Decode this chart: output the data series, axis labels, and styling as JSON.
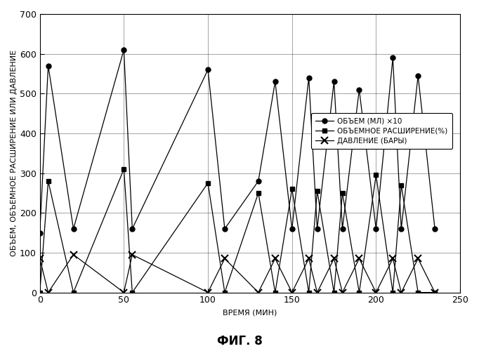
{
  "title": "ФИГ. 8",
  "ylabel": "ОБЪЕМ, ОБЪЕМНОЕ РАСШИРЕНИЕ ИЛИ ДАВЛЕНИЕ",
  "xlabel": "ВРЕМЯ (МИН)",
  "xlim": [
    0,
    250
  ],
  "ylim": [
    0,
    700
  ],
  "yticks": [
    0,
    100,
    200,
    300,
    400,
    500,
    600,
    700
  ],
  "xticks": [
    0,
    50,
    100,
    150,
    200,
    250
  ],
  "bg_color": "#ffffff",
  "volume_x": [
    0,
    5,
    20,
    50,
    55,
    100,
    110,
    130,
    140,
    150,
    160,
    165,
    175,
    180,
    190,
    200,
    210,
    215,
    225,
    235
  ],
  "volume_y": [
    150,
    570,
    160,
    610,
    160,
    560,
    160,
    280,
    530,
    160,
    540,
    160,
    530,
    160,
    510,
    160,
    590,
    160,
    545,
    160
  ],
  "expansion_x": [
    0,
    5,
    20,
    50,
    55,
    100,
    110,
    130,
    140,
    150,
    160,
    165,
    175,
    180,
    190,
    200,
    210,
    215,
    225,
    235
  ],
  "expansion_y": [
    0,
    280,
    0,
    310,
    0,
    275,
    0,
    250,
    0,
    260,
    0,
    255,
    0,
    250,
    0,
    295,
    0,
    270,
    0,
    0
  ],
  "pressure_x": [
    0,
    5,
    20,
    50,
    55,
    100,
    110,
    130,
    140,
    150,
    160,
    165,
    175,
    180,
    190,
    200,
    210,
    215,
    225,
    235
  ],
  "pressure_y": [
    85,
    0,
    95,
    0,
    95,
    0,
    85,
    0,
    85,
    0,
    85,
    0,
    85,
    0,
    85,
    0,
    85,
    0,
    85,
    0
  ],
  "legend_labels": [
    "ОБЪЕМ (МЛ) ×10",
    "ОБЪЕМНОЕ РАСШИРЕНИЕ(%)",
    "ДАВЛЕНИЕ (БАРЫ)"
  ],
  "line_color": "#000000",
  "fontsize_title": 12,
  "fontsize_labels": 8,
  "fontsize_legend": 7.5,
  "fontsize_ticks": 9
}
